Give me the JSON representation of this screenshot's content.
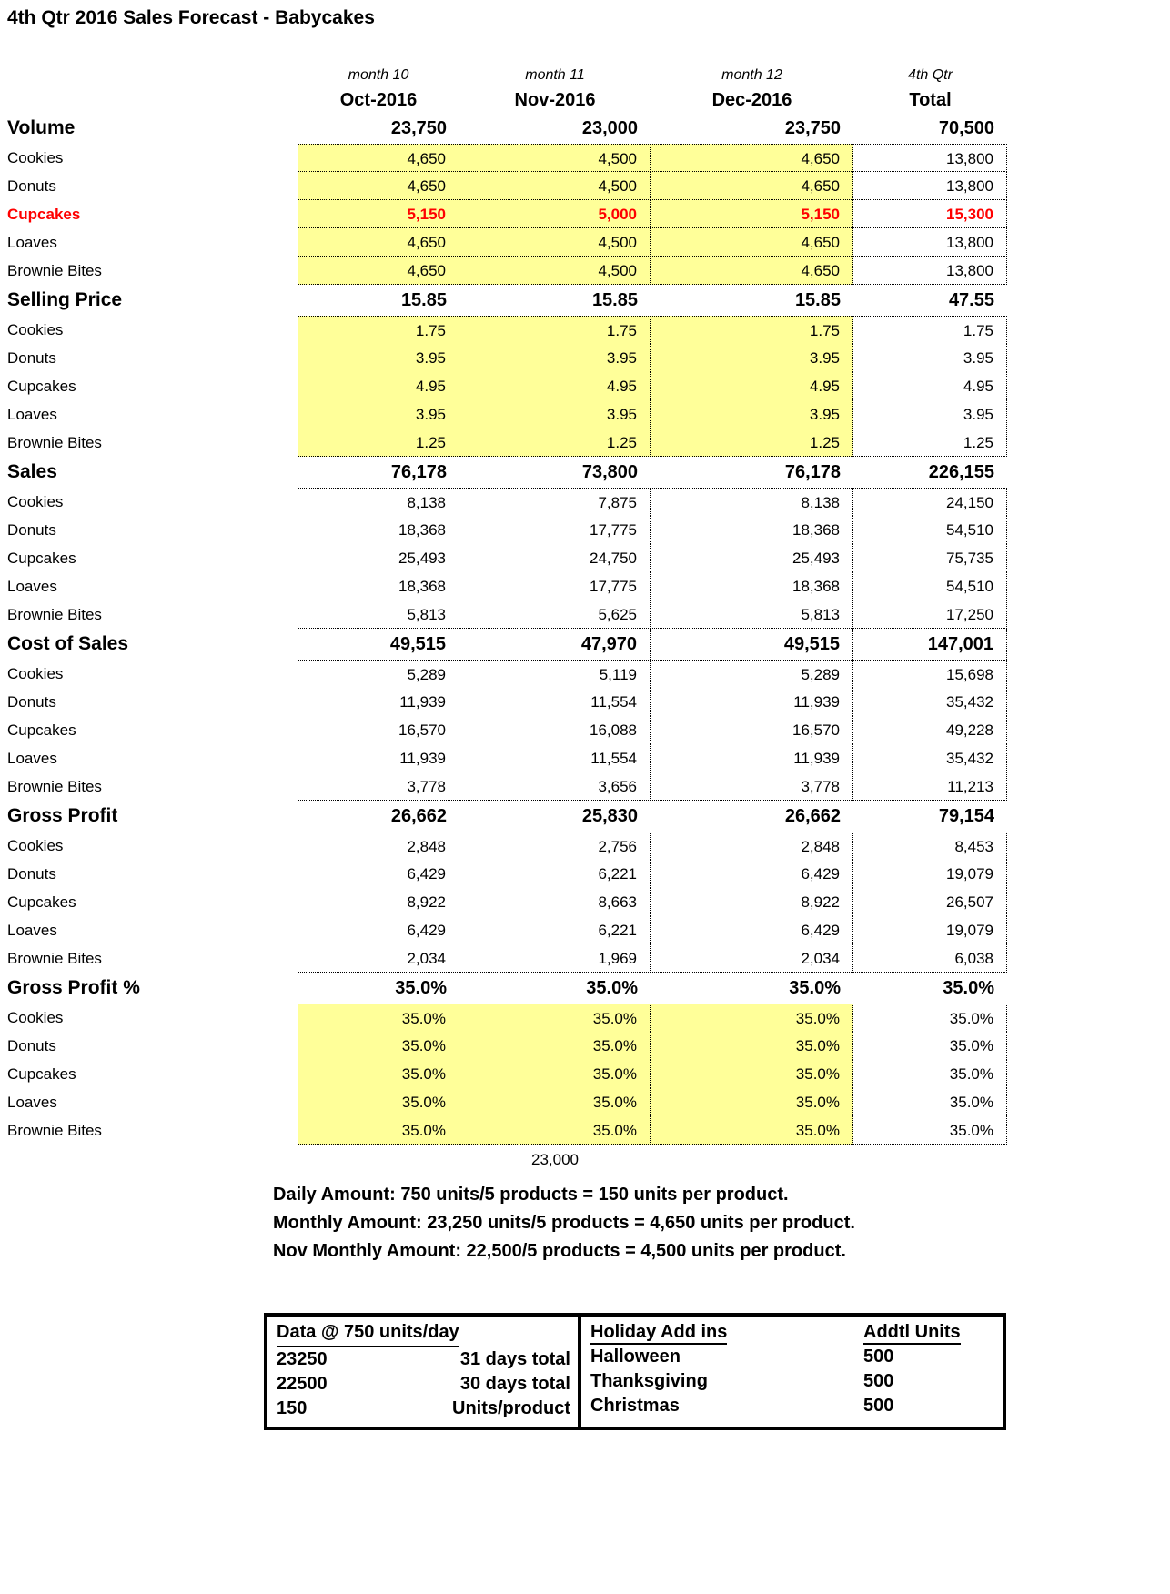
{
  "title": "4th Qtr 2016 Sales Forecast - Babycakes",
  "colors": {
    "highlight": "#FFFF99",
    "alert": "#FF0000"
  },
  "columns": {
    "month_labels": [
      "month 10",
      "month 11",
      "month 12",
      "4th Qtr"
    ],
    "month_names": [
      "Oct-2016",
      "Nov-2016",
      "Dec-2016",
      "Total"
    ]
  },
  "sections": [
    {
      "name": "Volume",
      "summary": [
        "23,750",
        "23,000",
        "23,750",
        "70,500"
      ],
      "highlight": true,
      "row_separators": true,
      "summary_boxed": false,
      "rows": [
        {
          "label": "Cookies",
          "values": [
            "4,650",
            "4,500",
            "4,650",
            "13,800"
          ]
        },
        {
          "label": "Donuts",
          "values": [
            "4,650",
            "4,500",
            "4,650",
            "13,800"
          ]
        },
        {
          "label": "Cupcakes",
          "values": [
            "5,150",
            "5,000",
            "5,150",
            "15,300"
          ],
          "alert": true
        },
        {
          "label": "Loaves",
          "values": [
            "4,650",
            "4,500",
            "4,650",
            "13,800"
          ]
        },
        {
          "label": "Brownie Bites",
          "values": [
            "4,650",
            "4,500",
            "4,650",
            "13,800"
          ]
        }
      ]
    },
    {
      "name": "Selling Price",
      "summary": [
        "15.85",
        "15.85",
        "15.85",
        "47.55"
      ],
      "highlight": true,
      "row_separators": false,
      "summary_boxed": false,
      "rows": [
        {
          "label": "Cookies",
          "values": [
            "1.75",
            "1.75",
            "1.75",
            "1.75"
          ]
        },
        {
          "label": "Donuts",
          "values": [
            "3.95",
            "3.95",
            "3.95",
            "3.95"
          ]
        },
        {
          "label": "Cupcakes",
          "values": [
            "4.95",
            "4.95",
            "4.95",
            "4.95"
          ]
        },
        {
          "label": "Loaves",
          "values": [
            "3.95",
            "3.95",
            "3.95",
            "3.95"
          ]
        },
        {
          "label": "Brownie Bites",
          "values": [
            "1.25",
            "1.25",
            "1.25",
            "1.25"
          ]
        }
      ]
    },
    {
      "name": "Sales",
      "summary": [
        "76,178",
        "73,800",
        "76,178",
        "226,155"
      ],
      "highlight": false,
      "row_separators": false,
      "summary_boxed": false,
      "rows": [
        {
          "label": "Cookies",
          "values": [
            "8,138",
            "7,875",
            "8,138",
            "24,150"
          ]
        },
        {
          "label": "Donuts",
          "values": [
            "18,368",
            "17,775",
            "18,368",
            "54,510"
          ]
        },
        {
          "label": "Cupcakes",
          "values": [
            "25,493",
            "24,750",
            "25,493",
            "75,735"
          ]
        },
        {
          "label": "Loaves",
          "values": [
            "18,368",
            "17,775",
            "18,368",
            "54,510"
          ]
        },
        {
          "label": "Brownie Bites",
          "values": [
            "5,813",
            "5,625",
            "5,813",
            "17,250"
          ]
        }
      ]
    },
    {
      "name": "Cost of Sales",
      "summary": [
        "49,515",
        "47,970",
        "49,515",
        "147,001"
      ],
      "highlight": false,
      "row_separators": false,
      "summary_boxed": true,
      "rows": [
        {
          "label": "Cookies",
          "values": [
            "5,289",
            "5,119",
            "5,289",
            "15,698"
          ]
        },
        {
          "label": "Donuts",
          "values": [
            "11,939",
            "11,554",
            "11,939",
            "35,432"
          ]
        },
        {
          "label": "Cupcakes",
          "values": [
            "16,570",
            "16,088",
            "16,570",
            "49,228"
          ]
        },
        {
          "label": "Loaves",
          "values": [
            "11,939",
            "11,554",
            "11,939",
            "35,432"
          ]
        },
        {
          "label": "Brownie Bites",
          "values": [
            "3,778",
            "3,656",
            "3,778",
            "11,213"
          ]
        }
      ]
    },
    {
      "name": "Gross Profit",
      "summary": [
        "26,662",
        "25,830",
        "26,662",
        "79,154"
      ],
      "highlight": false,
      "row_separators": false,
      "summary_boxed": false,
      "rows": [
        {
          "label": "Cookies",
          "values": [
            "2,848",
            "2,756",
            "2,848",
            "8,453"
          ]
        },
        {
          "label": "Donuts",
          "values": [
            "6,429",
            "6,221",
            "6,429",
            "19,079"
          ]
        },
        {
          "label": "Cupcakes",
          "values": [
            "8,922",
            "8,663",
            "8,922",
            "26,507"
          ]
        },
        {
          "label": "Loaves",
          "values": [
            "6,429",
            "6,221",
            "6,429",
            "19,079"
          ]
        },
        {
          "label": "Brownie Bites",
          "values": [
            "2,034",
            "1,969",
            "2,034",
            "6,038"
          ]
        }
      ]
    },
    {
      "name": "Gross Profit %",
      "summary": [
        "35.0%",
        "35.0%",
        "35.0%",
        "35.0%"
      ],
      "highlight": true,
      "row_separators": false,
      "summary_boxed": false,
      "rows": [
        {
          "label": "Cookies",
          "values": [
            "35.0%",
            "35.0%",
            "35.0%",
            "35.0%"
          ]
        },
        {
          "label": "Donuts",
          "values": [
            "35.0%",
            "35.0%",
            "35.0%",
            "35.0%"
          ]
        },
        {
          "label": "Cupcakes",
          "values": [
            "35.0%",
            "35.0%",
            "35.0%",
            "35.0%"
          ]
        },
        {
          "label": "Loaves",
          "values": [
            "35.0%",
            "35.0%",
            "35.0%",
            "35.0%"
          ]
        },
        {
          "label": "Brownie Bites",
          "values": [
            "35.0%",
            "35.0%",
            "35.0%",
            "35.0%"
          ]
        }
      ]
    }
  ],
  "footnote_value": "23,000",
  "notes": [
    "Daily Amount: 750 units/5 products = 150 units per product.",
    "Monthly Amount: 23,250 units/5 products = 4,650 units per product.",
    "Nov Monthly Amount: 22,500/5 products = 4,500 units per product."
  ],
  "data_table": {
    "left": {
      "header": "Data @ 750 units/day",
      "rows": [
        [
          "23250",
          "31 days total"
        ],
        [
          "22500",
          "30 days total"
        ],
        [
          "150",
          "Units/product"
        ]
      ]
    },
    "right": {
      "headers": [
        "Holiday Add ins",
        "Addtl Units"
      ],
      "rows": [
        [
          "Halloween",
          "500"
        ],
        [
          "Thanksgiving",
          "500"
        ],
        [
          "Christmas",
          "500"
        ]
      ]
    }
  }
}
